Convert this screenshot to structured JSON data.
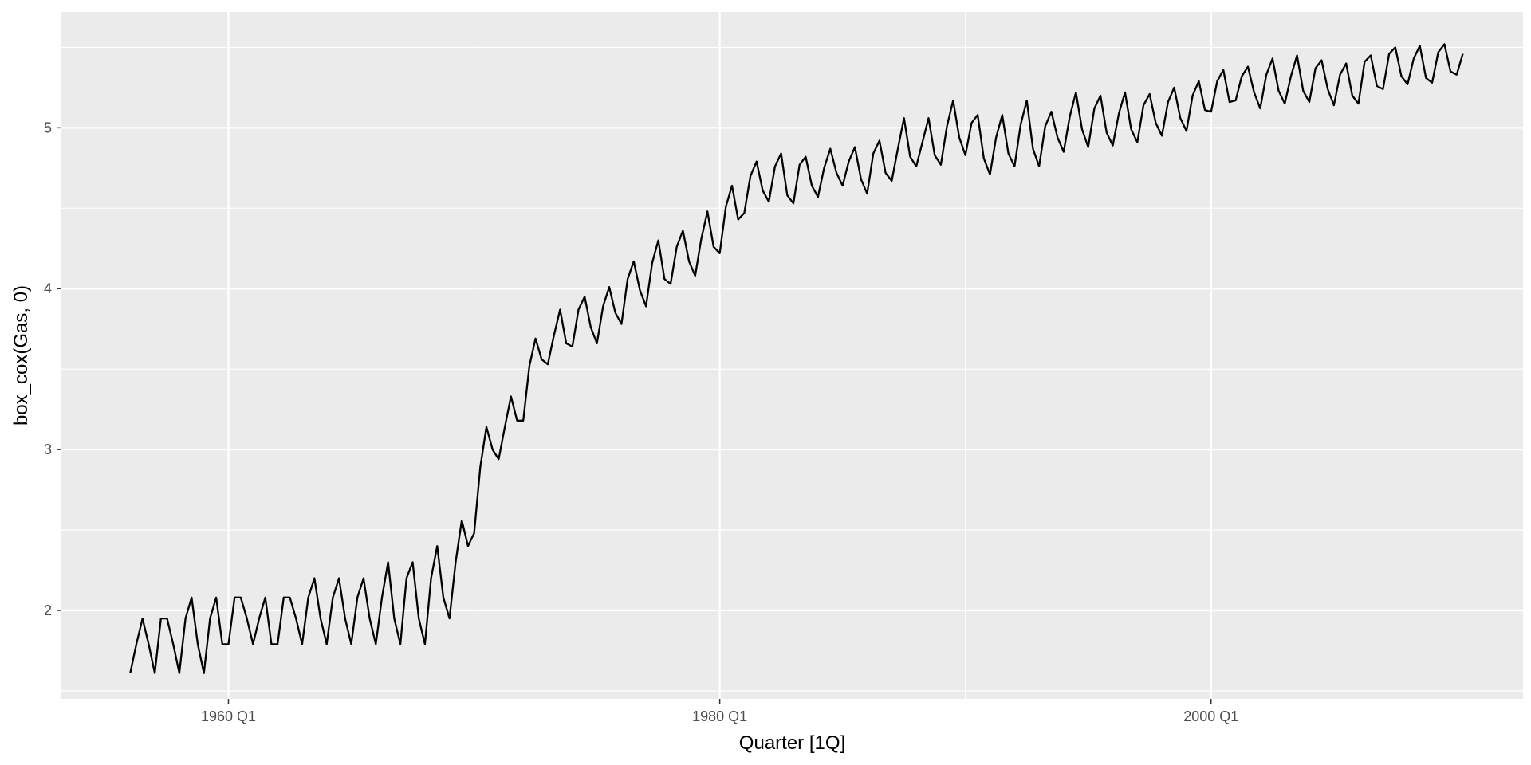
{
  "chart_data": {
    "type": "line",
    "title": "",
    "xlabel": "Quarter [1Q]",
    "ylabel": "box_cox(Gas, 0)",
    "x_ticks": [
      {
        "value": 1960,
        "label": "1960 Q1"
      },
      {
        "value": 1980,
        "label": "1980 Q1"
      },
      {
        "value": 2000,
        "label": "2000 Q1"
      }
    ],
    "x_minor_ticks": [
      1970,
      1990
    ],
    "y_ticks": [
      {
        "value": 2,
        "label": "2"
      },
      {
        "value": 3,
        "label": "3"
      },
      {
        "value": 4,
        "label": "4"
      },
      {
        "value": 5,
        "label": "5"
      }
    ],
    "y_minor_ticks": [
      1.5,
      2.5,
      3.5,
      4.5,
      5.5
    ],
    "xlim": [
      1953.2,
      2012.7
    ],
    "ylim": [
      1.45,
      5.72
    ],
    "grid": true,
    "legend": "none",
    "colors": {
      "panel": "#ebebeb",
      "grid": "#ffffff",
      "line": "#000000"
    },
    "series": [
      {
        "start": 1956.0,
        "step": 0.25,
        "values": [
          1.61,
          1.79,
          1.95,
          1.79,
          1.61,
          1.95,
          1.95,
          1.79,
          1.61,
          1.95,
          2.08,
          1.79,
          1.61,
          1.95,
          2.08,
          1.79,
          1.79,
          2.08,
          2.08,
          1.95,
          1.79,
          1.95,
          2.08,
          1.79,
          1.79,
          2.08,
          2.08,
          1.95,
          1.79,
          2.08,
          2.2,
          1.95,
          1.79,
          2.08,
          2.2,
          1.95,
          1.79,
          2.08,
          2.2,
          1.95,
          1.79,
          2.08,
          2.3,
          1.95,
          1.79,
          2.2,
          2.3,
          1.95,
          1.79,
          2.2,
          2.4,
          2.08,
          1.95,
          2.3,
          2.56,
          2.4,
          2.48,
          2.89,
          3.14,
          3.0,
          2.94,
          3.14,
          3.33,
          3.18,
          3.18,
          3.52,
          3.69,
          3.56,
          3.53,
          3.71,
          3.87,
          3.66,
          3.64,
          3.87,
          3.95,
          3.76,
          3.66,
          3.89,
          4.01,
          3.85,
          3.78,
          4.06,
          4.17,
          3.99,
          3.89,
          4.16,
          4.3,
          4.06,
          4.03,
          4.26,
          4.36,
          4.17,
          4.08,
          4.31,
          4.48,
          4.26,
          4.22,
          4.51,
          4.64,
          4.43,
          4.47,
          4.7,
          4.79,
          4.61,
          4.54,
          4.76,
          4.84,
          4.58,
          4.53,
          4.77,
          4.82,
          4.64,
          4.57,
          4.75,
          4.87,
          4.72,
          4.64,
          4.79,
          4.88,
          4.68,
          4.59,
          4.84,
          4.92,
          4.72,
          4.67,
          4.87,
          5.06,
          4.82,
          4.76,
          4.91,
          5.06,
          4.83,
          4.77,
          5.01,
          5.17,
          4.94,
          4.83,
          5.03,
          5.08,
          4.81,
          4.71,
          4.94,
          5.08,
          4.84,
          4.76,
          5.02,
          5.17,
          4.87,
          4.76,
          5.01,
          5.1,
          4.94,
          4.85,
          5.07,
          5.22,
          4.99,
          4.88,
          5.12,
          5.2,
          4.97,
          4.89,
          5.09,
          5.22,
          4.99,
          4.91,
          5.14,
          5.21,
          5.03,
          4.95,
          5.16,
          5.25,
          5.06,
          4.98,
          5.2,
          5.29,
          5.11,
          5.1,
          5.29,
          5.36,
          5.16,
          5.17,
          5.32,
          5.38,
          5.22,
          5.12,
          5.33,
          5.43,
          5.23,
          5.15,
          5.32,
          5.45,
          5.23,
          5.16,
          5.37,
          5.42,
          5.24,
          5.14,
          5.33,
          5.4,
          5.2,
          5.15,
          5.41,
          5.45,
          5.26,
          5.24,
          5.46,
          5.5,
          5.32,
          5.27,
          5.43,
          5.51,
          5.31,
          5.28,
          5.47,
          5.52,
          5.35,
          5.33,
          5.46
        ]
      }
    ]
  }
}
